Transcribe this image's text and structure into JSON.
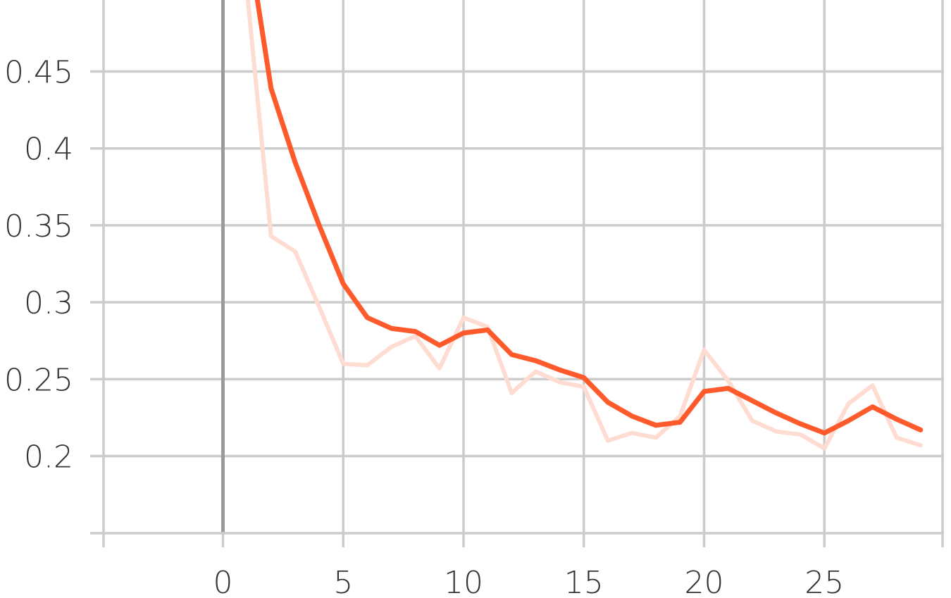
{
  "chart_data": {
    "type": "line",
    "title": "",
    "xlabel": "",
    "ylabel": "",
    "xlim": [
      -5,
      30.5
    ],
    "ylim": [
      0.15,
      0.5
    ],
    "x_ticks": [
      0,
      5,
      10,
      15,
      20,
      25
    ],
    "x_tick_labels": [
      "0",
      "5",
      "10",
      "15",
      "20",
      "25"
    ],
    "y_ticks": [
      0.2,
      0.25,
      0.3,
      0.35,
      0.4,
      0.45
    ],
    "y_tick_labels": [
      "0.2",
      "0.25",
      "0.3",
      "0.35",
      "0.4",
      "0.45"
    ],
    "grid": true,
    "series": [
      {
        "role": "raw",
        "color": "#ffdcd2",
        "x": [
          1,
          2,
          3,
          4,
          5,
          6,
          7,
          8,
          9,
          10,
          11,
          12,
          13,
          14,
          15,
          16,
          17,
          18,
          19,
          20,
          21,
          22,
          23,
          24,
          25,
          26,
          27,
          28,
          29
        ],
        "values": [
          0.502,
          0.343,
          0.333,
          0.297,
          0.26,
          0.259,
          0.271,
          0.278,
          0.257,
          0.29,
          0.284,
          0.241,
          0.255,
          0.248,
          0.245,
          0.21,
          0.215,
          0.212,
          0.226,
          0.269,
          0.249,
          0.223,
          0.216,
          0.214,
          0.205,
          0.234,
          0.246,
          0.212,
          0.207
        ]
      },
      {
        "role": "smoothed",
        "color": "#ff5a2b",
        "x": [
          1,
          2,
          3,
          4,
          5,
          6,
          7,
          8,
          9,
          10,
          11,
          12,
          13,
          14,
          15,
          16,
          17,
          18,
          19,
          20,
          21,
          22,
          23,
          24,
          25,
          26,
          27,
          28,
          29
        ],
        "values": [
          0.54,
          0.439,
          0.391,
          0.35,
          0.312,
          0.29,
          0.283,
          0.281,
          0.272,
          0.28,
          0.282,
          0.266,
          0.262,
          0.256,
          0.251,
          0.235,
          0.226,
          0.22,
          0.222,
          0.242,
          0.244,
          0.236,
          0.228,
          0.221,
          0.215,
          0.223,
          0.232,
          0.224,
          0.217
        ]
      }
    ]
  }
}
